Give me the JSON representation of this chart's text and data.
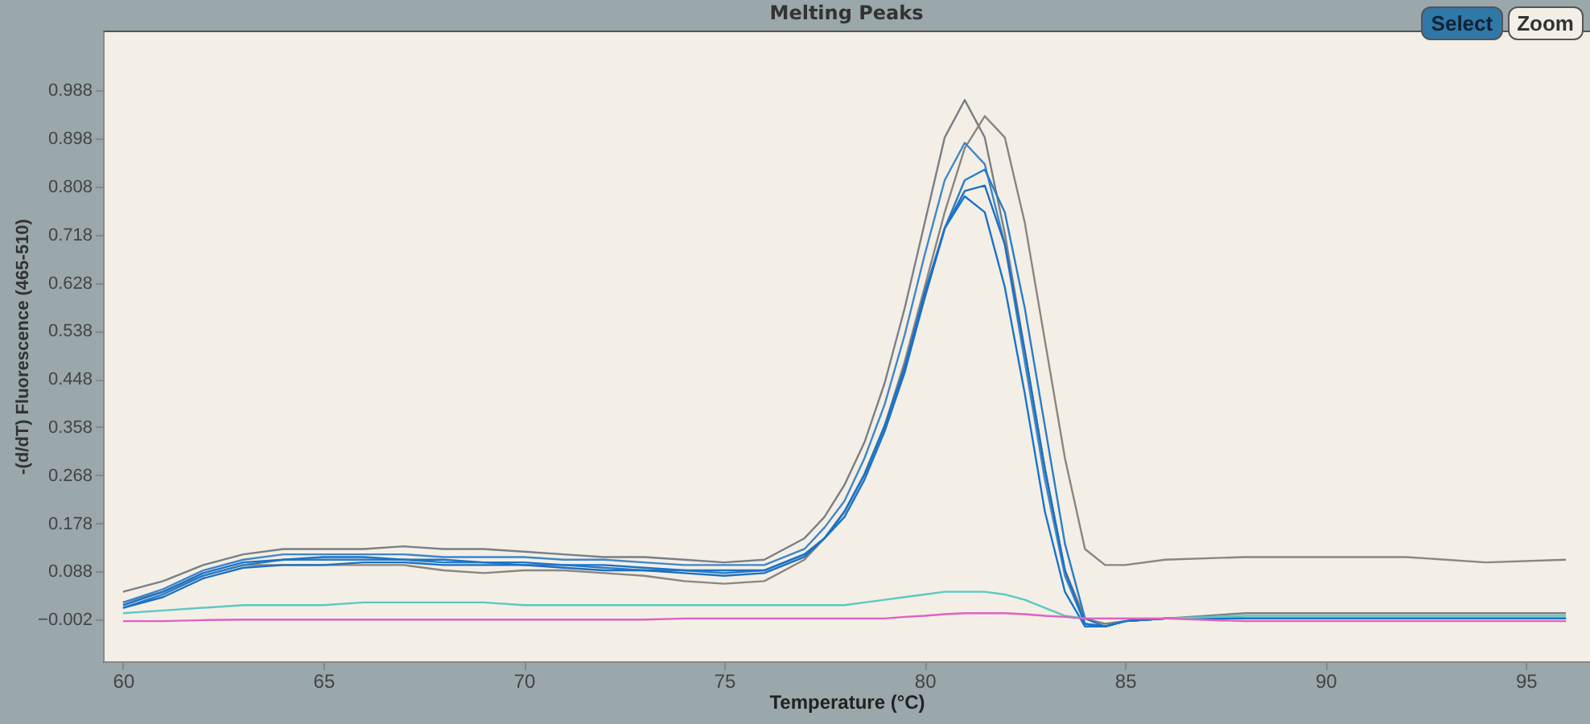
{
  "chart_data": {
    "type": "line",
    "title": "Melting Peaks",
    "xlabel": "Temperature (°C)",
    "ylabel": "-(d/dT) Fluorescence (465-510)",
    "annotations": [
      "Select",
      "Zoom"
    ],
    "x": [
      60,
      61,
      62,
      63,
      64,
      65,
      66,
      67,
      68,
      69,
      70,
      71,
      72,
      73,
      74,
      75,
      76,
      77,
      77.5,
      78,
      78.5,
      79,
      79.5,
      80,
      80.5,
      81,
      81.5,
      82,
      82.5,
      83,
      83.5,
      84,
      84.5,
      85,
      86,
      88,
      90,
      92,
      94,
      96
    ],
    "series": [
      {
        "color": "#7a7f86",
        "values": [
          0.05,
          0.07,
          0.1,
          0.12,
          0.13,
          0.13,
          0.13,
          0.135,
          0.13,
          0.13,
          0.125,
          0.12,
          0.115,
          0.115,
          0.11,
          0.105,
          0.11,
          0.15,
          0.19,
          0.25,
          0.33,
          0.44,
          0.58,
          0.74,
          0.9,
          0.97,
          0.9,
          0.72,
          0.5,
          0.28,
          0.09,
          0.0,
          -0.01,
          -0.005,
          0.0,
          0.01,
          0.01,
          0.01,
          0.01,
          0.01
        ]
      },
      {
        "color": "#8a8580",
        "values": [
          0.03,
          0.05,
          0.08,
          0.1,
          0.1,
          0.1,
          0.1,
          0.1,
          0.09,
          0.085,
          0.09,
          0.09,
          0.085,
          0.08,
          0.07,
          0.065,
          0.07,
          0.11,
          0.15,
          0.2,
          0.27,
          0.36,
          0.48,
          0.62,
          0.76,
          0.88,
          0.94,
          0.9,
          0.74,
          0.52,
          0.3,
          0.13,
          0.1,
          0.1,
          0.11,
          0.115,
          0.115,
          0.115,
          0.105,
          0.11
        ]
      },
      {
        "color": "#3f86c8",
        "values": [
          0.03,
          0.055,
          0.09,
          0.11,
          0.12,
          0.12,
          0.12,
          0.12,
          0.115,
          0.115,
          0.115,
          0.11,
          0.11,
          0.105,
          0.1,
          0.1,
          0.1,
          0.13,
          0.17,
          0.22,
          0.3,
          0.4,
          0.53,
          0.68,
          0.82,
          0.89,
          0.85,
          0.7,
          0.48,
          0.26,
          0.08,
          -0.01,
          -0.015,
          -0.005,
          0.0,
          0.0,
          0.0,
          0.0,
          0.0,
          0.0
        ]
      },
      {
        "color": "#2a7cc4",
        "values": [
          0.02,
          0.045,
          0.08,
          0.1,
          0.11,
          0.11,
          0.11,
          0.11,
          0.105,
          0.105,
          0.1,
          0.1,
          0.095,
          0.09,
          0.09,
          0.085,
          0.09,
          0.12,
          0.15,
          0.2,
          0.27,
          0.36,
          0.47,
          0.6,
          0.73,
          0.82,
          0.84,
          0.76,
          0.58,
          0.36,
          0.14,
          0.0,
          -0.015,
          -0.005,
          0.0,
          0.0,
          0.0,
          0.0,
          0.0,
          0.0
        ]
      },
      {
        "color": "#1f6fbf",
        "values": [
          0.02,
          0.04,
          0.075,
          0.095,
          0.1,
          0.1,
          0.105,
          0.105,
          0.1,
          0.1,
          0.1,
          0.095,
          0.09,
          0.09,
          0.085,
          0.08,
          0.085,
          0.115,
          0.15,
          0.19,
          0.26,
          0.35,
          0.46,
          0.6,
          0.73,
          0.8,
          0.81,
          0.7,
          0.5,
          0.28,
          0.09,
          -0.01,
          -0.015,
          -0.005,
          0.0,
          0.0,
          0.0,
          0.0,
          0.0,
          0.0
        ]
      },
      {
        "color": "#1a73c9",
        "values": [
          0.025,
          0.05,
          0.085,
          0.105,
          0.11,
          0.115,
          0.115,
          0.11,
          0.11,
          0.105,
          0.105,
          0.1,
          0.1,
          0.095,
          0.09,
          0.09,
          0.09,
          0.12,
          0.15,
          0.2,
          0.27,
          0.36,
          0.47,
          0.61,
          0.73,
          0.79,
          0.76,
          0.62,
          0.42,
          0.2,
          0.05,
          -0.015,
          -0.015,
          -0.005,
          0.0,
          0.0,
          0.0,
          0.0,
          0.0,
          0.0
        ]
      },
      {
        "color": "#5cc8c0",
        "values": [
          0.01,
          0.015,
          0.02,
          0.025,
          0.025,
          0.025,
          0.03,
          0.03,
          0.03,
          0.03,
          0.025,
          0.025,
          0.025,
          0.025,
          0.025,
          0.025,
          0.025,
          0.025,
          0.025,
          0.025,
          0.03,
          0.035,
          0.04,
          0.045,
          0.05,
          0.05,
          0.05,
          0.045,
          0.035,
          0.02,
          0.005,
          0.0,
          0.0,
          0.0,
          0.0,
          0.005,
          0.005,
          0.005,
          0.005,
          0.005
        ]
      },
      {
        "color": "#e060c0",
        "values": [
          -0.005,
          -0.005,
          -0.003,
          -0.002,
          -0.002,
          -0.002,
          -0.002,
          -0.002,
          -0.002,
          -0.002,
          -0.002,
          -0.002,
          -0.002,
          -0.002,
          0.0,
          0.0,
          0.0,
          0.0,
          0.0,
          0.0,
          0.0,
          0.0,
          0.003,
          0.005,
          0.008,
          0.01,
          0.01,
          0.01,
          0.008,
          0.005,
          0.003,
          0.0,
          0.0,
          0.0,
          0.0,
          -0.005,
          -0.005,
          -0.005,
          -0.005,
          -0.005
        ]
      }
    ],
    "xlim": [
      59.5,
      96.6
    ],
    "xticks": [
      60,
      65,
      70,
      75,
      80,
      85,
      90,
      95
    ],
    "ylim": [
      -0.08,
      1.1
    ],
    "yticks": [
      -0.002,
      0.088,
      0.178,
      0.268,
      0.358,
      0.448,
      0.538,
      0.628,
      0.718,
      0.808,
      0.898,
      0.988
    ],
    "grid": false,
    "legend": false,
    "marker": "none",
    "line_style": "solid"
  }
}
